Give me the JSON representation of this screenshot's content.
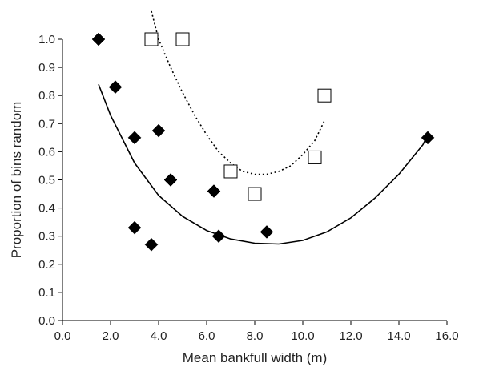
{
  "chart_data": {
    "type": "scatter",
    "xlabel": "Mean bankfull width (m)",
    "ylabel": "Proportion of bins random",
    "xlim": [
      0,
      16
    ],
    "ylim": [
      0,
      1
    ],
    "x_ticks": [
      "0.0",
      "2.0",
      "4.0",
      "6.0",
      "8.0",
      "10.0",
      "12.0",
      "14.0",
      "16.0"
    ],
    "y_ticks": [
      "0.0",
      "0.1",
      "0.2",
      "0.3",
      "0.4",
      "0.5",
      "0.6",
      "0.7",
      "0.8",
      "0.9",
      "1.0"
    ],
    "grid": false,
    "series": [
      {
        "marker": "filled-diamond",
        "color": "#000000",
        "points": [
          [
            1.5,
            1.0
          ],
          [
            2.2,
            0.83
          ],
          [
            3.0,
            0.65
          ],
          [
            4.0,
            0.675
          ],
          [
            4.5,
            0.5
          ],
          [
            3.0,
            0.33
          ],
          [
            3.7,
            0.27
          ],
          [
            6.3,
            0.46
          ],
          [
            6.5,
            0.3
          ],
          [
            8.5,
            0.315
          ],
          [
            15.2,
            0.65
          ]
        ],
        "trendline": {
          "style": "solid",
          "color": "#000000",
          "points": [
            [
              1.5,
              0.84
            ],
            [
              2.0,
              0.73
            ],
            [
              3.0,
              0.56
            ],
            [
              4.0,
              0.445
            ],
            [
              5.0,
              0.37
            ],
            [
              6.0,
              0.32
            ],
            [
              7.0,
              0.29
            ],
            [
              8.0,
              0.275
            ],
            [
              9.0,
              0.272
            ],
            [
              10.0,
              0.285
            ],
            [
              11.0,
              0.315
            ],
            [
              12.0,
              0.365
            ],
            [
              13.0,
              0.435
            ],
            [
              14.0,
              0.52
            ],
            [
              15.0,
              0.625
            ],
            [
              15.2,
              0.66
            ]
          ]
        }
      },
      {
        "marker": "open-square",
        "color": "#000000",
        "points": [
          [
            3.7,
            1.0
          ],
          [
            5.0,
            1.0
          ],
          [
            7.0,
            0.53
          ],
          [
            8.0,
            0.45
          ],
          [
            10.5,
            0.58
          ],
          [
            10.9,
            0.8
          ]
        ],
        "trendline": {
          "style": "dotted",
          "color": "#000000",
          "points": [
            [
              3.7,
              1.1
            ],
            [
              4.0,
              1.0
            ],
            [
              4.5,
              0.9
            ],
            [
              5.0,
              0.81
            ],
            [
              5.5,
              0.73
            ],
            [
              6.0,
              0.66
            ],
            [
              6.5,
              0.6
            ],
            [
              7.0,
              0.56
            ],
            [
              7.5,
              0.53
            ],
            [
              8.0,
              0.52
            ],
            [
              8.5,
              0.52
            ],
            [
              9.0,
              0.53
            ],
            [
              9.5,
              0.55
            ],
            [
              10.0,
              0.59
            ],
            [
              10.5,
              0.64
            ],
            [
              10.9,
              0.71
            ]
          ]
        }
      }
    ]
  }
}
